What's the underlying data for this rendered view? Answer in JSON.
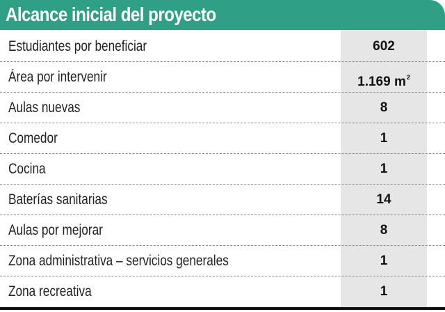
{
  "header": {
    "title": "Alcance inicial del proyecto"
  },
  "colors": {
    "header_bg": "#2f9f86",
    "value_column_bg": "#e6e6e6",
    "divider": "#8a8a8a"
  },
  "rows": [
    {
      "label": "Estudiantes por beneficiar",
      "value": "602"
    },
    {
      "label": "Área por intervenir",
      "value": "1.169 m",
      "unit_superscript": "2"
    },
    {
      "label": "Aulas nuevas",
      "value": "8"
    },
    {
      "label": "Comedor",
      "value": "1"
    },
    {
      "label": "Cocina",
      "value": "1"
    },
    {
      "label": "Baterías sanitarias",
      "value": "14"
    },
    {
      "label": "Aulas por mejorar",
      "value": "8"
    },
    {
      "label": "Zona administrativa – servicios generales",
      "value": "1"
    },
    {
      "label": "Zona recreativa",
      "value": "1"
    }
  ]
}
